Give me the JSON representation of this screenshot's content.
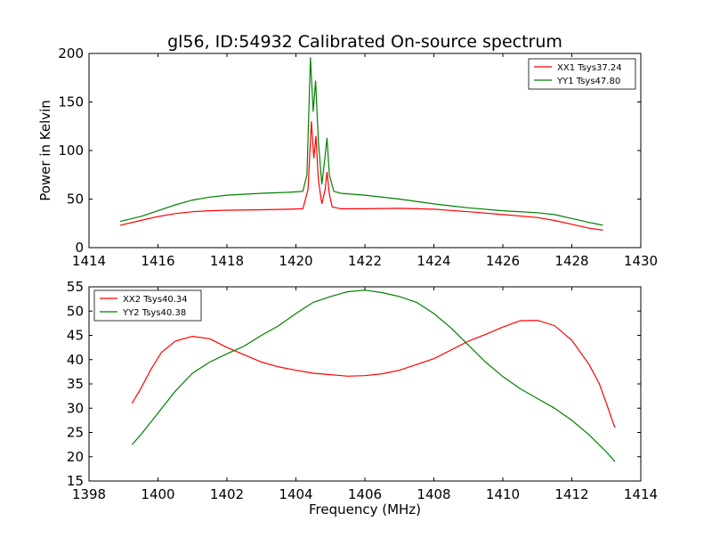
{
  "chart_data": [
    {
      "type": "line",
      "title": "gl56, ID:54932 Calibrated On-source spectrum",
      "xlabel": "",
      "ylabel": "Power in Kelvin",
      "xlim": [
        1414,
        1430
      ],
      "ylim": [
        0,
        200
      ],
      "xticks": [
        1414,
        1416,
        1418,
        1420,
        1422,
        1424,
        1426,
        1428,
        1430
      ],
      "yticks": [
        0,
        50,
        100,
        150,
        200
      ],
      "grid": false,
      "legend_position": "top-right",
      "series": [
        {
          "name": "XX1 Tsys37.24",
          "color": "#ff0000",
          "points": [
            [
              1414.9,
              23
            ],
            [
              1415.5,
              28
            ],
            [
              1416,
              32
            ],
            [
              1416.5,
              35
            ],
            [
              1417,
              37
            ],
            [
              1417.5,
              38
            ],
            [
              1418,
              38.5
            ],
            [
              1419,
              39
            ],
            [
              1419.8,
              39.5
            ],
            [
              1420.2,
              40
            ],
            [
              1420.35,
              60
            ],
            [
              1420.45,
              130
            ],
            [
              1420.52,
              92
            ],
            [
              1420.58,
              115
            ],
            [
              1420.65,
              70
            ],
            [
              1420.75,
              45
            ],
            [
              1420.85,
              60
            ],
            [
              1420.9,
              78
            ],
            [
              1420.97,
              55
            ],
            [
              1421.05,
              42
            ],
            [
              1421.3,
              40
            ],
            [
              1422,
              40
            ],
            [
              1423,
              40.5
            ],
            [
              1424,
              39.5
            ],
            [
              1425,
              37
            ],
            [
              1426,
              34
            ],
            [
              1427,
              31
            ],
            [
              1427.5,
              28
            ],
            [
              1428,
              24
            ],
            [
              1428.5,
              20
            ],
            [
              1428.9,
              18
            ]
          ]
        },
        {
          "name": "YY1 Tsys47.80",
          "color": "#008000",
          "points": [
            [
              1414.9,
              27
            ],
            [
              1415.5,
              32
            ],
            [
              1416,
              38
            ],
            [
              1416.5,
              44
            ],
            [
              1417,
              49
            ],
            [
              1417.5,
              52
            ],
            [
              1418,
              54
            ],
            [
              1419,
              56
            ],
            [
              1419.8,
              57
            ],
            [
              1420.2,
              58
            ],
            [
              1420.32,
              75
            ],
            [
              1420.42,
              196
            ],
            [
              1420.5,
              140
            ],
            [
              1420.57,
              172
            ],
            [
              1420.65,
              110
            ],
            [
              1420.75,
              65
            ],
            [
              1420.85,
              95
            ],
            [
              1420.9,
              113
            ],
            [
              1420.97,
              75
            ],
            [
              1421.1,
              58
            ],
            [
              1421.3,
              56
            ],
            [
              1422,
              54
            ],
            [
              1423,
              50
            ],
            [
              1424,
              45
            ],
            [
              1425,
              41
            ],
            [
              1426,
              38
            ],
            [
              1427,
              36
            ],
            [
              1427.5,
              34
            ],
            [
              1428,
              30
            ],
            [
              1428.5,
              26
            ],
            [
              1428.9,
              23
            ]
          ]
        }
      ]
    },
    {
      "type": "line",
      "title": "",
      "xlabel": "Frequency (MHz)",
      "ylabel": "",
      "xlim": [
        1398,
        1414
      ],
      "ylim": [
        15,
        55
      ],
      "xticks": [
        1398,
        1400,
        1402,
        1404,
        1406,
        1408,
        1410,
        1412,
        1414
      ],
      "yticks": [
        15,
        20,
        25,
        30,
        35,
        40,
        45,
        50,
        55
      ],
      "grid": false,
      "legend_position": "top-left",
      "series": [
        {
          "name": "XX2 Tsys40.34",
          "color": "#ff0000",
          "points": [
            [
              1399.25,
              31
            ],
            [
              1399.5,
              34
            ],
            [
              1399.8,
              38
            ],
            [
              1400.1,
              41.5
            ],
            [
              1400.5,
              43.8
            ],
            [
              1401,
              44.8
            ],
            [
              1401.5,
              44.3
            ],
            [
              1402,
              42.5
            ],
            [
              1402.5,
              41
            ],
            [
              1403,
              39.5
            ],
            [
              1403.5,
              38.5
            ],
            [
              1404,
              37.8
            ],
            [
              1404.5,
              37.2
            ],
            [
              1405,
              36.9
            ],
            [
              1405.5,
              36.6
            ],
            [
              1406,
              36.7
            ],
            [
              1406.5,
              37.1
            ],
            [
              1407,
              37.8
            ],
            [
              1407.5,
              39
            ],
            [
              1408,
              40.2
            ],
            [
              1408.5,
              42
            ],
            [
              1409,
              43.8
            ],
            [
              1409.5,
              45.2
            ],
            [
              1410,
              46.7
            ],
            [
              1410.5,
              48
            ],
            [
              1411,
              48.1
            ],
            [
              1411.5,
              47
            ],
            [
              1412,
              44
            ],
            [
              1412.5,
              39
            ],
            [
              1412.8,
              35
            ],
            [
              1413,
              31
            ],
            [
              1413.25,
              26
            ]
          ]
        },
        {
          "name": "YY2 Tsys40.38",
          "color": "#008000",
          "points": [
            [
              1399.25,
              22.5
            ],
            [
              1399.5,
              24.5
            ],
            [
              1400,
              29
            ],
            [
              1400.5,
              33.5
            ],
            [
              1401,
              37.2
            ],
            [
              1401.5,
              39.5
            ],
            [
              1402,
              41.2
            ],
            [
              1402.5,
              42.8
            ],
            [
              1403,
              45
            ],
            [
              1403.5,
              47
            ],
            [
              1404,
              49.5
            ],
            [
              1404.5,
              51.8
            ],
            [
              1405,
              53
            ],
            [
              1405.5,
              54
            ],
            [
              1406,
              54.3
            ],
            [
              1406.5,
              53.8
            ],
            [
              1407,
              53
            ],
            [
              1407.5,
              51.8
            ],
            [
              1408,
              49.5
            ],
            [
              1408.5,
              46.5
            ],
            [
              1409,
              43
            ],
            [
              1409.5,
              39.5
            ],
            [
              1410,
              36.5
            ],
            [
              1410.5,
              34
            ],
            [
              1411,
              32
            ],
            [
              1411.5,
              30
            ],
            [
              1412,
              27.5
            ],
            [
              1412.5,
              24.5
            ],
            [
              1413,
              21
            ],
            [
              1413.25,
              19
            ]
          ]
        }
      ]
    }
  ]
}
